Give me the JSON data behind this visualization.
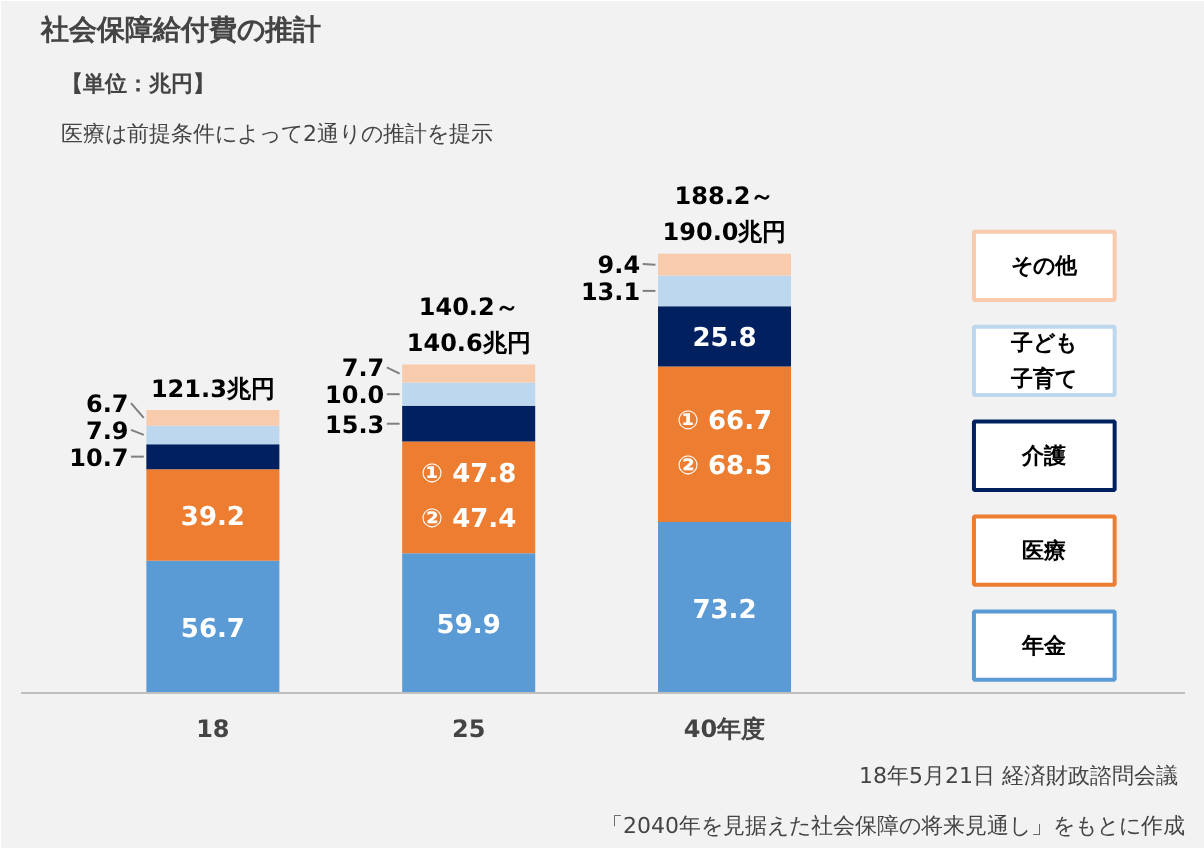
{
  "chart_data": {
    "type": "bar",
    "stacked": true,
    "title": "社会保障給付費の推計",
    "subtitle": "【単位：兆円】",
    "annotations": [
      "医療は前提条件によって2通りの推計を提示",
      "18年5月21日  経済財政諮問会議",
      "「2040年を見据えた社会保障の将来見通し」をもとに作成"
    ],
    "categories": [
      "18",
      "25",
      "40年度"
    ],
    "series": [
      {
        "name": "年金",
        "color": "#5b9bd5",
        "values": [
          56.7,
          59.9,
          73.2
        ],
        "value_labels": [
          "56.7",
          "59.9",
          "73.2"
        ]
      },
      {
        "name": "医療",
        "color": "#ed7d31",
        "values": [
          39.2,
          47.8,
          66.7
        ],
        "value_labels": [
          "39.2",
          "① 47.8\n② 47.4",
          "① 66.7\n② 68.5"
        ]
      },
      {
        "name": "介護",
        "color": "#002060",
        "values": [
          10.7,
          15.3,
          25.8
        ],
        "value_labels": [
          "10.7",
          "15.3",
          "25.8"
        ]
      },
      {
        "name": "子ども子育て",
        "color": "#bdd7ee",
        "values": [
          7.9,
          10.0,
          13.1
        ],
        "value_labels": [
          "7.9",
          "10.0",
          "13.1"
        ]
      },
      {
        "name": "その他",
        "color": "#f8cbad",
        "values": [
          6.7,
          7.7,
          9.4
        ],
        "value_labels": [
          "6.7",
          "7.7",
          "9.4"
        ]
      }
    ],
    "totals": [
      "121.3兆円",
      "140.2～\n140.6兆円",
      "188.2～\n190.0兆円"
    ],
    "legend": "right",
    "tick_labels": "x"
  }
}
